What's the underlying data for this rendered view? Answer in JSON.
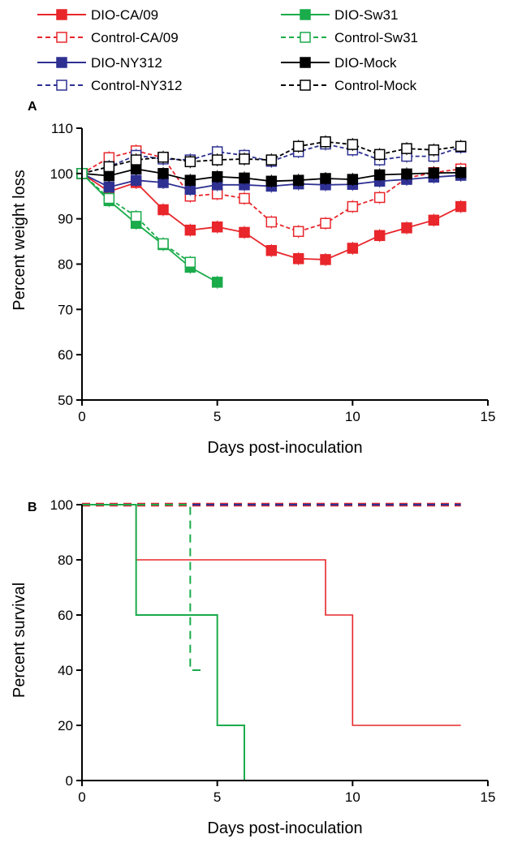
{
  "legend": [
    {
      "label": "DIO-CA/09",
      "color": "#e8262b",
      "dashed": false,
      "filled": true
    },
    {
      "label": "DIO-Sw31",
      "color": "#1aab4b",
      "dashed": false,
      "filled": true
    },
    {
      "label": "Control-CA/09",
      "color": "#e8262b",
      "dashed": true,
      "filled": false
    },
    {
      "label": "Control-Sw31",
      "color": "#1aab4b",
      "dashed": true,
      "filled": false
    },
    {
      "label": "DIO-NY312",
      "color": "#2e3192",
      "dashed": false,
      "filled": true
    },
    {
      "label": "DIO-Mock",
      "color": "#000000",
      "dashed": false,
      "filled": true
    },
    {
      "label": "Control-NY312",
      "color": "#2e3192",
      "dashed": true,
      "filled": false
    },
    {
      "label": "Control-Mock",
      "color": "#000000",
      "dashed": true,
      "filled": false
    }
  ],
  "chart_data": [
    {
      "panel": "A",
      "type": "line",
      "xlabel": "Days post-inoculation",
      "ylabel": "Percent weight loss",
      "xlim": [
        0,
        15
      ],
      "ylim": [
        50,
        110
      ],
      "xticks": [
        0,
        5,
        10,
        15
      ],
      "yticks": [
        50,
        60,
        70,
        80,
        90,
        100,
        110
      ],
      "grid": false,
      "legend_position": "top",
      "series": [
        {
          "name": "DIO-CA/09",
          "color": "#e8262b",
          "dashed": false,
          "filled": true,
          "x": [
            0,
            1,
            2,
            3,
            4,
            5,
            6,
            7,
            8,
            9,
            10,
            11,
            12,
            13,
            14
          ],
          "y": [
            100,
            96,
            98,
            92,
            87.5,
            88.2,
            87,
            83,
            81.2,
            81,
            83.5,
            86.3,
            88,
            89.7,
            92.7
          ]
        },
        {
          "name": "Control-CA/09",
          "color": "#e8262b",
          "dashed": true,
          "filled": false,
          "x": [
            0,
            1,
            2,
            3,
            4,
            5,
            6,
            7,
            8,
            9,
            10,
            11,
            12,
            13,
            14
          ],
          "y": [
            100,
            103.5,
            105,
            103.5,
            95,
            95.5,
            94.5,
            89.3,
            87.2,
            89,
            92.7,
            94.7,
            99,
            100.2,
            101
          ]
        },
        {
          "name": "DIO-NY312",
          "color": "#2e3192",
          "dashed": false,
          "filled": true,
          "x": [
            0,
            1,
            2,
            3,
            4,
            5,
            6,
            7,
            8,
            9,
            10,
            11,
            12,
            13,
            14
          ],
          "y": [
            100,
            97,
            98.5,
            98,
            96.5,
            97.5,
            97.5,
            97.2,
            97.7,
            97.5,
            97.6,
            98.3,
            98.7,
            99.2,
            99.6
          ]
        },
        {
          "name": "Control-NY312",
          "color": "#2e3192",
          "dashed": true,
          "filled": false,
          "x": [
            0,
            1,
            2,
            3,
            4,
            5,
            6,
            7,
            8,
            9,
            10,
            11,
            12,
            13,
            14
          ],
          "y": [
            100,
            101.5,
            104,
            103.2,
            103,
            104.8,
            104,
            102.7,
            104.8,
            106.5,
            105.2,
            103,
            103.8,
            103.8,
            105.8
          ]
        },
        {
          "name": "DIO-Mock",
          "color": "#000000",
          "dashed": false,
          "filled": true,
          "x": [
            0,
            1,
            2,
            3,
            4,
            5,
            6,
            7,
            8,
            9,
            10,
            11,
            12,
            13,
            14
          ],
          "y": [
            100,
            99.5,
            101,
            100,
            98.5,
            99.3,
            99,
            98.3,
            98.5,
            98.9,
            98.7,
            99.7,
            99.9,
            100.1,
            100.2
          ]
        },
        {
          "name": "Control-Mock",
          "color": "#000000",
          "dashed": true,
          "filled": false,
          "x": [
            0,
            1,
            2,
            3,
            4,
            5,
            6,
            7,
            8,
            9,
            10,
            11,
            12,
            13,
            14
          ],
          "y": [
            100,
            101.5,
            103,
            103.6,
            102.6,
            103,
            103.2,
            103,
            106,
            107,
            106.4,
            104.2,
            105.5,
            105.2,
            106
          ]
        },
        {
          "name": "DIO-Sw31",
          "color": "#1aab4b",
          "dashed": false,
          "filled": true,
          "x": [
            0,
            1,
            2,
            3,
            4,
            5
          ],
          "y": [
            100,
            94,
            89,
            84.3,
            79.3,
            76
          ]
        },
        {
          "name": "Control-Sw31",
          "color": "#1aab4b",
          "dashed": true,
          "filled": false,
          "x": [
            0,
            1,
            2,
            3,
            4
          ],
          "y": [
            100,
            94.5,
            90.5,
            84.5,
            80.4
          ]
        }
      ]
    },
    {
      "panel": "B",
      "type": "line",
      "step": true,
      "xlabel": "Days post-inoculation",
      "ylabel": "Percent survival",
      "xlim": [
        0,
        15
      ],
      "ylim": [
        0,
        100
      ],
      "xticks": [
        0,
        5,
        10,
        15
      ],
      "yticks": [
        0,
        20,
        40,
        60,
        80,
        100
      ],
      "grid": false,
      "series": [
        {
          "name": "Control-CA/09",
          "color": "#e8262b",
          "dashed": true,
          "width": 4.5,
          "x": [
            0,
            14
          ],
          "y": [
            100,
            100
          ]
        },
        {
          "name": "Control-NY312",
          "color": "#2e3192",
          "dashed": true,
          "width": 2.2,
          "x": [
            0,
            14
          ],
          "y": [
            100,
            100
          ]
        },
        {
          "name": "DIO-CA/09",
          "color": "#e8262b",
          "dashed": false,
          "width": 1.6,
          "x": [
            0,
            2,
            9,
            10,
            14
          ],
          "y": [
            100,
            80,
            60,
            20,
            20
          ]
        },
        {
          "name": "DIO-Sw31",
          "color": "#1aab4b",
          "dashed": false,
          "width": 2,
          "x": [
            0,
            2,
            5,
            6
          ],
          "y": [
            100,
            60,
            20,
            0
          ]
        },
        {
          "name": "Control-Sw31",
          "color": "#1aab4b",
          "dashed": true,
          "width": 2,
          "x": [
            0,
            4,
            4.5
          ],
          "y": [
            100,
            40,
            40
          ]
        }
      ]
    }
  ],
  "panel_letters": [
    "A",
    "B"
  ]
}
